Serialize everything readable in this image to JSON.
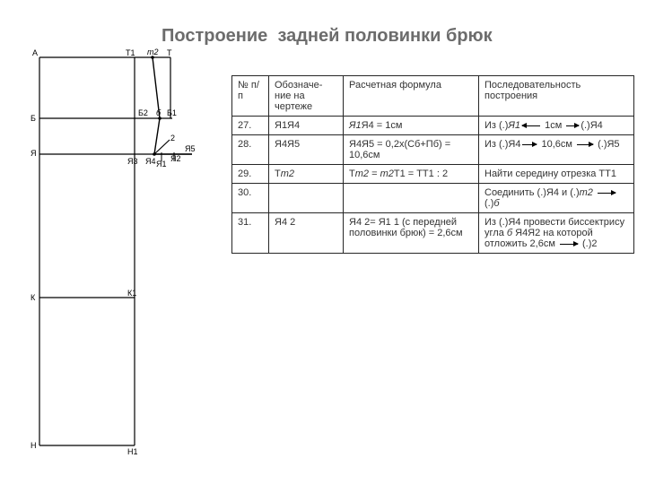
{
  "title_line1": "Построение",
  "title_line2": "задней половинки брюк",
  "diagram": {
    "stroke": "#000000",
    "stroke_width": 1.2,
    "labels": {
      "A": "А",
      "T1": "Т1",
      "t2": "т2",
      "T": "Т",
      "B": "Б",
      "B2": "Б2",
      "b": "б",
      "B1": "Б1",
      "Ya": "Я",
      "Ya3": "Я3",
      "Ya4": "Я4",
      "Ya5": "Я5",
      "Ya1": "Я1",
      "Ya2": "Я2",
      "two": "2",
      "K": "К",
      "K1": "К1",
      "N": "Н",
      "N1": "Н1"
    }
  },
  "table": {
    "headers": {
      "num": "№ п/п",
      "denote": "Обозначе-ние на чертеже",
      "formula": "Расчетная формула",
      "sequence": "Последовательность построения"
    },
    "rows": [
      {
        "n": "27.",
        "d": "Я1Я4",
        "f_html": "<span class='i'>Я1</span>Я4 = 1см",
        "s_html": "Из (.)<span class='i'>Я1</span><span class='arrow left' style='width:20px'></span> 1см <span class='arrow right' style='width:14px'></span>(.)Я4"
      },
      {
        "n": "28.",
        "d": "Я4Я5",
        "f_html": "Я4Я5 = 0,2х(Сб+Пб) = 10,6см",
        "s_html": "Из (.)Я4<span class='arrow right' style='width:16px'></span> 10,6см <span class='arrow right' style='width:18px'></span> (.)Я5"
      },
      {
        "n": "29.",
        "d_html": "Т<span class='i'>т2</span>",
        "f_html": "Т<span class='i'>т2</span> = <span class='i'>т2</span>Т1 = ТТ1 : 2",
        "s_html": "Найти середину отрезка ТТ1"
      },
      {
        "n": "30.",
        "d": "",
        "f_html": "",
        "s_html": "Соединить (.)Я4 и (.)<span class='i'>т2</span> <span class='arrow right' style='width:20px'></span> (.)<span class='i'>б</span>"
      },
      {
        "n": "31.",
        "d": "Я4 2",
        "f_html": "Я4 2= Я1 1 (с передней половинки брюк) = 2,6см",
        "s_html": "Из (.)Я4 провести биссектрису угла <span class='i'>б</span> Я4Я2 на которой отложить 2,6см <span class='arrow right' style='width:20px'></span> (.)2"
      }
    ]
  }
}
